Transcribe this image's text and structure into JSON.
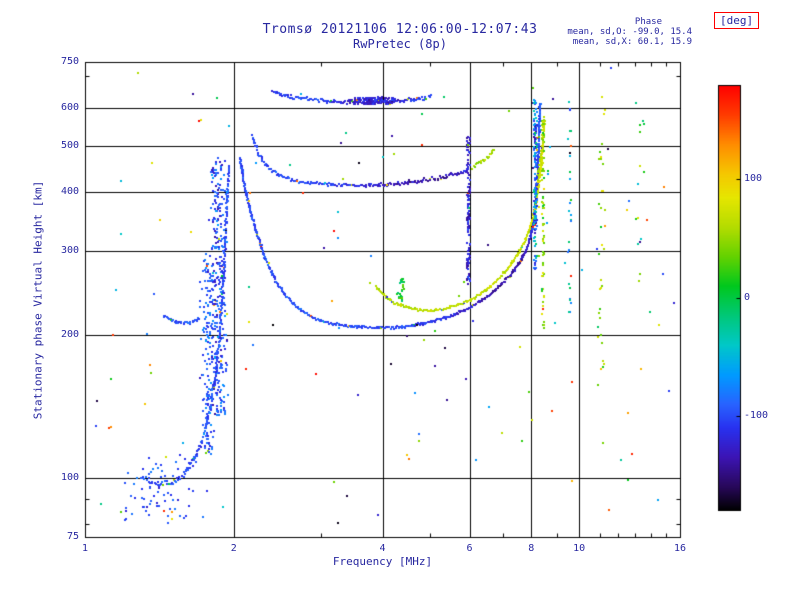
{
  "title": "Tromsø 20121106 12:06:00-12:07:43",
  "subtitle": "RwPretec (8p)",
  "annotation": {
    "line1": "Phase",
    "line2": "mean, sd,O: -99.0, 15.4",
    "line3": "mean, sd,X:  60.1, 15.9"
  },
  "colors": {
    "text": "#2828a0",
    "axis": "#000000",
    "background": "#ffffff",
    "colorbar_box_border": "#ff0000"
  },
  "chart_data": {
    "type": "scatter",
    "title": "Tromsø 20121106 12:06:00-12:07:43",
    "subtitle": "RwPretec (8p)",
    "xlabel": "Frequency [MHz]",
    "ylabel": "Stationary phase Virtual Height [km]",
    "xscale": "log",
    "yscale": "log",
    "xlim": [
      1,
      16
    ],
    "ylim": [
      75,
      750
    ],
    "xticks": [
      1,
      2,
      4,
      6,
      8,
      10,
      16
    ],
    "xtick_labels": [
      "1",
      "2",
      "4",
      "6",
      "8",
      "10",
      "16"
    ],
    "xminor": [
      3,
      5,
      7,
      9,
      11,
      12,
      13,
      14,
      15
    ],
    "xgrid": [
      2,
      4,
      6,
      8,
      10
    ],
    "yticks": [
      750,
      600,
      500,
      400,
      300,
      200,
      100,
      75
    ],
    "ytick_labels": [
      "750",
      "600",
      "500",
      "400",
      "300",
      "200",
      "100",
      "75"
    ],
    "yminor": [
      80,
      90,
      700
    ],
    "ygrid": [
      100,
      200,
      300,
      400,
      500,
      600
    ],
    "grid": true,
    "legend": "none",
    "colorbar": {
      "label": "[deg]",
      "ticks": [
        100,
        0,
        -100
      ],
      "tick_labels": [
        "100",
        "0",
        "-100"
      ],
      "range": [
        -180,
        180
      ],
      "stops": [
        [
          -180,
          "#000000"
        ],
        [
          -160,
          "#28085a"
        ],
        [
          -135,
          "#3c14b4"
        ],
        [
          -110,
          "#2832f0"
        ],
        [
          -90,
          "#2864ff"
        ],
        [
          -65,
          "#009bff"
        ],
        [
          -40,
          "#00c8c8"
        ],
        [
          -15,
          "#00c878"
        ],
        [
          10,
          "#00c81e"
        ],
        [
          35,
          "#64d200"
        ],
        [
          60,
          "#b4dc00"
        ],
        [
          85,
          "#e6e600"
        ],
        [
          105,
          "#f5c800"
        ],
        [
          130,
          "#ff8c00"
        ],
        [
          155,
          "#ff3c00"
        ],
        [
          180,
          "#ff0000"
        ]
      ]
    },
    "series": [
      {
        "name": "e-layer-rise",
        "phase": -100,
        "spread": 3.5,
        "step": 1.3,
        "points": [
          [
            1.3,
            100
          ],
          [
            1.4,
            97
          ],
          [
            1.5,
            97
          ],
          [
            1.58,
            101
          ],
          [
            1.65,
            107
          ],
          [
            1.71,
            116
          ],
          [
            1.76,
            128
          ],
          [
            1.8,
            144
          ],
          [
            1.84,
            166
          ],
          [
            1.87,
            198
          ],
          [
            1.9,
            245
          ],
          [
            1.92,
            305
          ],
          [
            1.94,
            385
          ],
          [
            1.96,
            455
          ]
        ]
      },
      {
        "name": "e-second-arc",
        "phase": -98,
        "spread": 1.8,
        "step": 1.2,
        "points": [
          [
            1.44,
            219
          ],
          [
            1.5,
            214
          ],
          [
            1.57,
            211
          ],
          [
            1.64,
            212
          ],
          [
            1.71,
            216
          ]
        ]
      },
      {
        "name": "f-o-mode-trace",
        "phase": -100,
        "spread": 1.4,
        "step": 1.0,
        "points": [
          [
            2.06,
            470,
            -100
          ],
          [
            2.1,
            415,
            -100
          ],
          [
            2.16,
            365,
            -100
          ],
          [
            2.23,
            325,
            -100
          ],
          [
            2.32,
            288,
            -100
          ],
          [
            2.43,
            260,
            -100
          ],
          [
            2.56,
            240,
            -100
          ],
          [
            2.72,
            226,
            -100
          ],
          [
            2.92,
            216,
            -100
          ],
          [
            3.15,
            211,
            -100
          ],
          [
            3.45,
            208,
            -102
          ],
          [
            3.8,
            207,
            -103
          ],
          [
            4.15,
            207,
            -103
          ],
          [
            4.5,
            208,
            -104
          ],
          [
            4.85,
            211,
            -106
          ],
          [
            5.2,
            215,
            -112
          ],
          [
            5.55,
            220,
            -120
          ],
          [
            5.9,
            226,
            -128
          ],
          [
            6.25,
            234,
            -133
          ],
          [
            6.6,
            243,
            -136
          ],
          [
            6.95,
            255,
            -137
          ],
          [
            7.3,
            269,
            -136
          ],
          [
            7.6,
            285,
            -132
          ],
          [
            7.85,
            305,
            -125
          ],
          [
            8.02,
            330,
            -118
          ],
          [
            8.13,
            362,
            -112
          ],
          [
            8.2,
            400,
            -108
          ],
          [
            8.25,
            448,
            -104
          ],
          [
            8.29,
            505,
            -100
          ],
          [
            8.32,
            565,
            -98
          ],
          [
            8.34,
            615,
            -96
          ]
        ]
      },
      {
        "name": "f-x-mode-trace",
        "phase": 62,
        "spread": 1.4,
        "step": 1.1,
        "points": [
          [
            3.88,
            252,
            62
          ],
          [
            4.05,
            241,
            62
          ],
          [
            4.25,
            233,
            63
          ],
          [
            4.5,
            228,
            64
          ],
          [
            4.8,
            225,
            64
          ],
          [
            5.1,
            225,
            64
          ],
          [
            5.4,
            227,
            64
          ],
          [
            5.7,
            231,
            64
          ],
          [
            6.0,
            236,
            65
          ],
          [
            6.3,
            243,
            65
          ],
          [
            6.6,
            252,
            66
          ],
          [
            6.9,
            263,
            67
          ],
          [
            7.2,
            277,
            68
          ],
          [
            7.5,
            294,
            70
          ],
          [
            7.75,
            313,
            72
          ],
          [
            7.95,
            335,
            74
          ],
          [
            8.1,
            360,
            76
          ],
          [
            8.22,
            392,
            78
          ],
          [
            8.32,
            430,
            80
          ],
          [
            8.4,
            472,
            82
          ],
          [
            8.46,
            520,
            84
          ],
          [
            8.5,
            565,
            85
          ]
        ]
      },
      {
        "name": "second-hop-trace",
        "phase": -110,
        "spread": 2.0,
        "step": 1.3,
        "points": [
          [
            2.18,
            525,
            -100
          ],
          [
            2.23,
            488,
            -100
          ],
          [
            2.3,
            460,
            -100
          ],
          [
            2.4,
            442,
            -100
          ],
          [
            2.52,
            430,
            -100
          ],
          [
            2.68,
            422,
            -100
          ],
          [
            2.88,
            417,
            -102
          ],
          [
            3.12,
            414,
            -106
          ],
          [
            3.4,
            413,
            -112
          ],
          [
            3.72,
            413,
            -120
          ],
          [
            4.05,
            414,
            -128
          ],
          [
            4.4,
            417,
            -134
          ],
          [
            4.75,
            421,
            -138
          ],
          [
            5.1,
            426,
            -138
          ],
          [
            5.45,
            432,
            -134
          ],
          [
            5.75,
            438,
            -126
          ],
          [
            6.0,
            444,
            -110
          ]
        ]
      },
      {
        "name": "second-hop-x-green",
        "phase": 55,
        "spread": 2.2,
        "step": 1.5,
        "points": [
          [
            6.08,
            450,
            45
          ],
          [
            6.25,
            458,
            52
          ],
          [
            6.45,
            468,
            58
          ],
          [
            6.62,
            480,
            60
          ],
          [
            6.75,
            492,
            58
          ]
        ]
      },
      {
        "name": "second-hop-x-right",
        "phase": 62,
        "spread": 2.0,
        "step": 1.6,
        "points": [
          [
            8.24,
            425,
            58
          ],
          [
            8.33,
            458,
            60
          ],
          [
            8.42,
            498,
            63
          ],
          [
            8.49,
            540,
            66
          ],
          [
            8.53,
            575,
            68
          ]
        ]
      },
      {
        "name": "top-echo-trace",
        "phase": -115,
        "spread": 2.4,
        "step": 1.2,
        "points": [
          [
            2.4,
            648,
            -108
          ],
          [
            2.55,
            636,
            -103
          ],
          [
            2.75,
            628,
            -100
          ],
          [
            3.0,
            622,
            -104
          ],
          [
            3.25,
            619,
            -115
          ],
          [
            3.55,
            617,
            -130
          ],
          [
            3.85,
            617,
            -138
          ],
          [
            4.15,
            619,
            -132
          ],
          [
            4.45,
            622,
            -118
          ],
          [
            4.72,
            626,
            -105
          ],
          [
            4.92,
            631,
            -100
          ],
          [
            5.05,
            637,
            -98
          ]
        ]
      }
    ],
    "columns": [
      {
        "name": "e-cusp-cloud",
        "x": 1.86,
        "xspread": 0.09,
        "ymin": 135,
        "ymax": 470,
        "count": 300,
        "phase": -100,
        "phase_spread": 45
      },
      {
        "name": "e-cusp-cloud-2",
        "x": 1.77,
        "xspread": 0.07,
        "ymin": 112,
        "ymax": 300,
        "count": 150,
        "phase": -95,
        "phase_spread": 40
      },
      {
        "name": "low-height-scatter",
        "x": 1.45,
        "xspread": 0.33,
        "ymin": 80,
        "ymax": 112,
        "count": 70,
        "phase": -100,
        "phase_spread": 28
      },
      {
        "name": "top-trace-blob",
        "x": 3.8,
        "xspread": 0.45,
        "ymin": 612,
        "ymax": 632,
        "count": 150,
        "phase": -122,
        "phase_spread": 24
      },
      {
        "name": "spread-column-6mhz",
        "x": 5.97,
        "xspread": 0.06,
        "ymin": 255,
        "ymax": 525,
        "count": 130,
        "phase": -122,
        "phase_spread": 32
      },
      {
        "name": "spread-column-8mhz",
        "x": 8.15,
        "xspread": 0.09,
        "ymin": 275,
        "ymax": 630,
        "count": 160,
        "phase": -75,
        "phase_spread": 85
      },
      {
        "name": "spread-column-8p5mhz",
        "x": 8.46,
        "xspread": 0.07,
        "ymin": 205,
        "ymax": 565,
        "count": 80,
        "phase": 45,
        "phase_spread": 60
      },
      {
        "name": "green-cluster-4p3mhz",
        "x": 4.35,
        "xspread": 0.09,
        "ymin": 235,
        "ymax": 262,
        "count": 26,
        "phase": 10,
        "phase_spread": 45
      },
      {
        "name": "sparse-column-9p6mhz",
        "x": 9.6,
        "xspread": 0.12,
        "ymin": 215,
        "ymax": 630,
        "count": 28,
        "phase": -40,
        "phase_spread": 100
      },
      {
        "name": "sparse-column-11mhz",
        "x": 11.1,
        "xspread": 0.25,
        "ymin": 155,
        "ymax": 645,
        "count": 34,
        "phase": 55,
        "phase_spread": 80
      },
      {
        "name": "sparse-column-13mhz",
        "x": 13.3,
        "xspread": 0.35,
        "ymin": 240,
        "ymax": 620,
        "count": 14,
        "phase": 20,
        "phase_spread": 100
      }
    ],
    "noise": {
      "count": 130,
      "seed": 11
    }
  }
}
